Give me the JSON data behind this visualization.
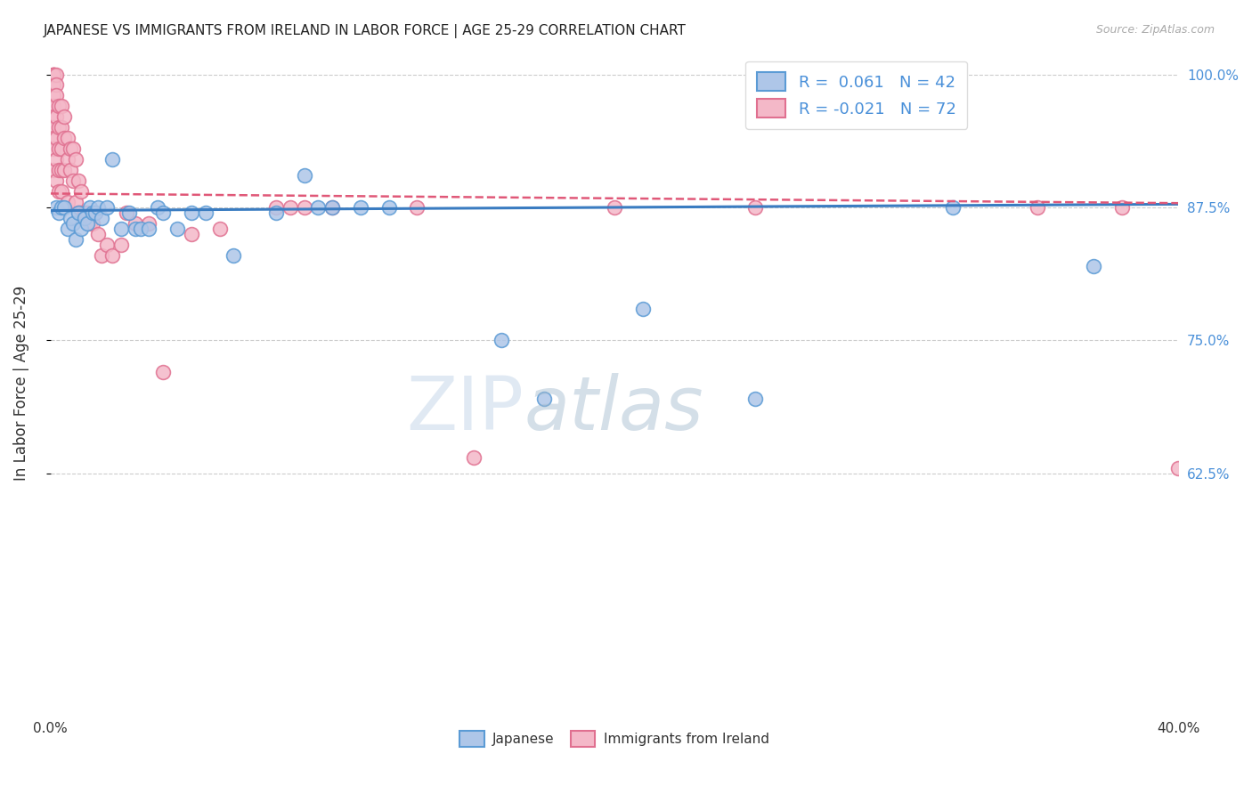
{
  "title": "JAPANESE VS IMMIGRANTS FROM IRELAND IN LABOR FORCE | AGE 25-29 CORRELATION CHART",
  "source": "Source: ZipAtlas.com",
  "ylabel": "In Labor Force | Age 25-29",
  "xlim": [
    0.0,
    0.4
  ],
  "ylim": [
    0.4,
    1.02
  ],
  "yticks": [
    1.0,
    0.875,
    0.75,
    0.625
  ],
  "ytick_labels": [
    "100.0%",
    "87.5%",
    "75.0%",
    "62.5%"
  ],
  "xticks": [
    0.0,
    0.05,
    0.1,
    0.15,
    0.2,
    0.25,
    0.3,
    0.35,
    0.4
  ],
  "xtick_labels": [
    "0.0%",
    "",
    "",
    "",
    "",
    "",
    "",
    "",
    "40.0%"
  ],
  "japanese_R": 0.061,
  "japanese_N": 42,
  "ireland_R": -0.021,
  "ireland_N": 72,
  "japanese_color": "#aec6e8",
  "japanese_edge_color": "#5b9bd5",
  "ireland_color": "#f4b8c8",
  "ireland_edge_color": "#e07090",
  "japanese_line_color": "#3a7cc1",
  "ireland_line_color": "#e05878",
  "japanese_x": [
    0.002,
    0.003,
    0.004,
    0.005,
    0.006,
    0.007,
    0.008,
    0.009,
    0.01,
    0.011,
    0.012,
    0.013,
    0.014,
    0.015,
    0.016,
    0.017,
    0.018,
    0.02,
    0.022,
    0.025,
    0.028,
    0.03,
    0.032,
    0.035,
    0.038,
    0.04,
    0.045,
    0.05,
    0.055,
    0.065,
    0.08,
    0.09,
    0.095,
    0.1,
    0.11,
    0.12,
    0.16,
    0.175,
    0.21,
    0.25,
    0.32,
    0.37
  ],
  "japanese_y": [
    0.875,
    0.87,
    0.875,
    0.875,
    0.855,
    0.865,
    0.86,
    0.845,
    0.87,
    0.855,
    0.865,
    0.86,
    0.875,
    0.87,
    0.87,
    0.875,
    0.865,
    0.875,
    0.92,
    0.855,
    0.87,
    0.855,
    0.855,
    0.855,
    0.875,
    0.87,
    0.855,
    0.87,
    0.87,
    0.83,
    0.87,
    0.905,
    0.875,
    0.875,
    0.875,
    0.875,
    0.75,
    0.695,
    0.78,
    0.695,
    0.875,
    0.82
  ],
  "ireland_x": [
    0.001,
    0.001,
    0.001,
    0.001,
    0.001,
    0.001,
    0.001,
    0.001,
    0.001,
    0.001,
    0.001,
    0.001,
    0.002,
    0.002,
    0.002,
    0.002,
    0.002,
    0.002,
    0.002,
    0.003,
    0.003,
    0.003,
    0.003,
    0.003,
    0.004,
    0.004,
    0.004,
    0.004,
    0.004,
    0.005,
    0.005,
    0.005,
    0.006,
    0.006,
    0.006,
    0.007,
    0.007,
    0.008,
    0.008,
    0.009,
    0.009,
    0.01,
    0.01,
    0.011,
    0.011,
    0.012,
    0.013,
    0.014,
    0.015,
    0.016,
    0.017,
    0.018,
    0.02,
    0.022,
    0.025,
    0.027,
    0.03,
    0.035,
    0.04,
    0.05,
    0.06,
    0.08,
    0.085,
    0.09,
    0.1,
    0.13,
    0.15,
    0.2,
    0.25,
    0.35,
    0.38,
    0.4
  ],
  "ireland_y": [
    1.0,
    1.0,
    1.0,
    1.0,
    0.99,
    0.98,
    0.97,
    0.96,
    0.95,
    0.94,
    0.93,
    0.91,
    1.0,
    0.99,
    0.98,
    0.96,
    0.94,
    0.92,
    0.9,
    0.97,
    0.95,
    0.93,
    0.91,
    0.89,
    0.97,
    0.95,
    0.93,
    0.91,
    0.89,
    0.96,
    0.94,
    0.91,
    0.94,
    0.92,
    0.88,
    0.93,
    0.91,
    0.93,
    0.9,
    0.92,
    0.88,
    0.9,
    0.87,
    0.89,
    0.87,
    0.87,
    0.87,
    0.86,
    0.86,
    0.87,
    0.85,
    0.83,
    0.84,
    0.83,
    0.84,
    0.87,
    0.86,
    0.86,
    0.72,
    0.85,
    0.855,
    0.875,
    0.875,
    0.875,
    0.875,
    0.875,
    0.64,
    0.875,
    0.875,
    0.875,
    0.875,
    0.63
  ]
}
